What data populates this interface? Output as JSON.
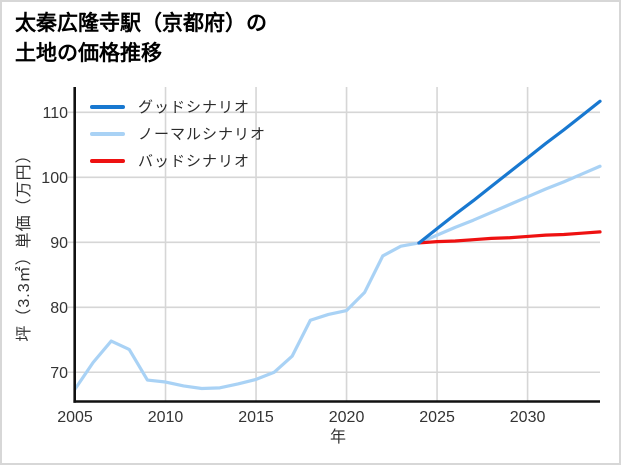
{
  "chart": {
    "title_line1": "太秦広隆寺駅（京都府）の",
    "title_line2": "土地の価格推移",
    "xlabel": "年",
    "ylabel": "坪（3.3㎡）単価（万円）"
  },
  "colors": {
    "good": "#1878d0",
    "normal": "#a9d2f5",
    "bad": "#ee1111",
    "grid": "#d6d6d6",
    "axis": "#111111",
    "tick_text": "#333333",
    "background": "#ffffff",
    "frame_border": "#d7d7d7"
  },
  "chart_data": {
    "type": "line",
    "title": "太秦広隆寺駅（京都府）の土地の価格推移",
    "xlabel": "年",
    "ylabel": "坪（3.3㎡）単価（万円）",
    "xlim": [
      2005,
      2034
    ],
    "ylim": [
      65.5,
      113.9
    ],
    "xticks": [
      2005,
      2010,
      2015,
      2020,
      2025,
      2030
    ],
    "yticks": [
      70,
      80,
      90,
      100,
      110
    ],
    "grid": true,
    "legend_position": "upper-left",
    "series": [
      {
        "name": "グッドシナリオ",
        "color": "#1878d0",
        "x": [
          2024,
          2025,
          2026,
          2027,
          2028,
          2029,
          2030,
          2031,
          2032,
          2033,
          2034
        ],
        "values": [
          89.9,
          92.1,
          94.3,
          96.4,
          98.6,
          100.8,
          103.0,
          105.2,
          107.3,
          109.5,
          111.7
        ]
      },
      {
        "name": "ノーマルシナリオ",
        "color": "#a9d2f5",
        "x": [
          2005,
          2006,
          2007,
          2008,
          2009,
          2010,
          2011,
          2012,
          2013,
          2014,
          2015,
          2016,
          2017,
          2018,
          2019,
          2020,
          2021,
          2022,
          2023,
          2024,
          2025,
          2026,
          2027,
          2028,
          2029,
          2030,
          2031,
          2032,
          2033,
          2034
        ],
        "values": [
          67.4,
          71.5,
          74.8,
          73.5,
          68.8,
          68.5,
          67.9,
          67.5,
          67.6,
          68.2,
          68.9,
          70.0,
          72.5,
          78.0,
          78.9,
          79.5,
          82.3,
          87.9,
          89.4,
          89.9,
          91.1,
          92.3,
          93.4,
          94.6,
          95.8,
          97.0,
          98.2,
          99.3,
          100.5,
          101.7
        ]
      },
      {
        "name": "バッドシナリオ",
        "color": "#ee1111",
        "x": [
          2024,
          2025,
          2026,
          2027,
          2028,
          2029,
          2030,
          2031,
          2032,
          2033,
          2034
        ],
        "values": [
          89.9,
          90.1,
          90.2,
          90.4,
          90.6,
          90.7,
          90.9,
          91.1,
          91.2,
          91.4,
          91.6
        ]
      }
    ]
  }
}
